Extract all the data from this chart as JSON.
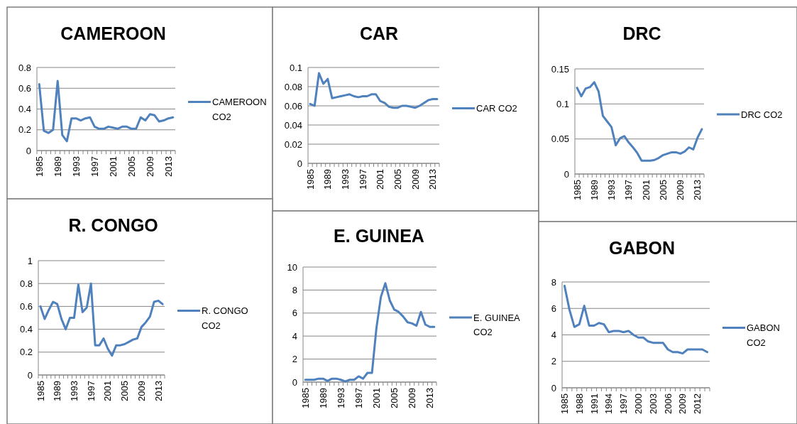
{
  "chart_data": [
    {
      "type": "line",
      "title": "CAMEROON",
      "categories": [
        "1985",
        null,
        null,
        null,
        "1989",
        null,
        null,
        null,
        "1993",
        null,
        null,
        null,
        "1997",
        null,
        null,
        null,
        "2001",
        null,
        null,
        null,
        "2005",
        null,
        null,
        null,
        "2009",
        null,
        null,
        null,
        "2013",
        null
      ],
      "series": [
        {
          "name": "CAMEROON CO2",
          "color": "#4f81bd",
          "values": [
            0.64,
            0.19,
            0.17,
            0.2,
            0.67,
            0.15,
            0.09,
            0.31,
            0.31,
            0.29,
            0.31,
            0.32,
            0.23,
            0.21,
            0.21,
            0.23,
            0.22,
            0.21,
            0.23,
            0.23,
            0.21,
            0.21,
            0.32,
            0.29,
            0.35,
            0.34,
            0.28,
            0.29,
            0.31,
            0.32
          ]
        }
      ],
      "ylim": [
        0,
        0.8
      ],
      "yticks": [
        0,
        0.2,
        0.4,
        0.6,
        0.8
      ],
      "grid": "y",
      "legend": "right"
    },
    {
      "type": "line",
      "title": "CAR",
      "categories": [
        "1985",
        null,
        null,
        null,
        "1989",
        null,
        null,
        null,
        "1993",
        null,
        null,
        null,
        "1997",
        null,
        null,
        null,
        "2001",
        null,
        null,
        null,
        "2005",
        null,
        null,
        null,
        "2009",
        null,
        null,
        null,
        "2013",
        null
      ],
      "series": [
        {
          "name": "CAR CO2",
          "color": "#4f81bd",
          "values": [
            0.062,
            0.06,
            0.094,
            0.083,
            0.088,
            0.068,
            0.069,
            0.07,
            0.071,
            0.072,
            0.07,
            0.069,
            0.07,
            0.07,
            0.072,
            0.072,
            0.065,
            0.063,
            0.059,
            0.058,
            0.058,
            0.06,
            0.06,
            0.059,
            0.058,
            0.06,
            0.063,
            0.066,
            0.067,
            0.067
          ]
        }
      ],
      "ylim": [
        0,
        0.1
      ],
      "yticks": [
        0,
        0.02,
        0.04,
        0.06,
        0.08,
        0.1
      ],
      "grid": "y",
      "legend": "right"
    },
    {
      "type": "line",
      "title": "DRC",
      "categories": [
        "1985",
        null,
        null,
        null,
        "1989",
        null,
        null,
        null,
        "1993",
        null,
        null,
        null,
        "1997",
        null,
        null,
        null,
        "2001",
        null,
        null,
        null,
        "2005",
        null,
        null,
        null,
        "2009",
        null,
        null,
        null,
        "2013",
        null
      ],
      "series": [
        {
          "name": "DRC CO2",
          "color": "#4f81bd",
          "values": [
            0.123,
            0.111,
            0.122,
            0.124,
            0.131,
            0.118,
            0.083,
            0.075,
            0.067,
            0.041,
            0.051,
            0.054,
            0.045,
            0.038,
            0.03,
            0.019,
            0.019,
            0.019,
            0.02,
            0.023,
            0.027,
            0.029,
            0.031,
            0.031,
            0.029,
            0.032,
            0.038,
            0.035,
            0.052,
            0.064
          ]
        }
      ],
      "ylim": [
        0,
        0.15
      ],
      "yticks": [
        0,
        0.05,
        0.1,
        0.15
      ],
      "grid": "y",
      "legend": "right"
    },
    {
      "type": "line",
      "title": "R. CONGO",
      "categories": [
        "1985",
        null,
        null,
        null,
        "1989",
        null,
        null,
        null,
        "1993",
        null,
        null,
        null,
        "1997",
        null,
        null,
        null,
        "2001",
        null,
        null,
        null,
        "2005",
        null,
        null,
        null,
        "2009",
        null,
        null,
        null,
        "2013",
        null
      ],
      "series": [
        {
          "name": "R. CONGO CO2",
          "color": "#4f81bd",
          "values": [
            0.6,
            0.49,
            0.57,
            0.64,
            0.62,
            0.49,
            0.4,
            0.5,
            0.5,
            0.79,
            0.55,
            0.59,
            0.8,
            0.26,
            0.26,
            0.32,
            0.23,
            0.17,
            0.26,
            0.26,
            0.27,
            0.29,
            0.31,
            0.32,
            0.42,
            0.46,
            0.51,
            0.64,
            0.65,
            0.62
          ]
        }
      ],
      "ylim": [
        0,
        1
      ],
      "yticks": [
        0,
        0.2,
        0.4,
        0.6,
        0.8,
        1
      ],
      "grid": "y",
      "legend": "right"
    },
    {
      "type": "line",
      "title": "E. GUINEA",
      "categories": [
        "1985",
        null,
        null,
        null,
        "1989",
        null,
        null,
        null,
        "1993",
        null,
        null,
        null,
        "1997",
        null,
        null,
        null,
        "2001",
        null,
        null,
        null,
        "2005",
        null,
        null,
        null,
        "2009",
        null,
        null,
        null,
        "2013",
        null
      ],
      "series": [
        {
          "name": "E. GUINEA CO2",
          "color": "#4f81bd",
          "values": [
            0.2,
            0.2,
            0.2,
            0.3,
            0.3,
            0.1,
            0.3,
            0.3,
            0.2,
            0.05,
            0.2,
            0.2,
            0.5,
            0.3,
            0.8,
            0.8,
            4.7,
            7.4,
            8.6,
            7.1,
            6.3,
            6.1,
            5.7,
            5.2,
            5.1,
            4.9,
            6.1,
            5.0,
            4.8,
            4.8
          ]
        }
      ],
      "ylim": [
        0,
        10
      ],
      "yticks": [
        0,
        2,
        4,
        6,
        8,
        10
      ],
      "grid": "y",
      "legend": "right"
    },
    {
      "type": "line",
      "title": "GABON",
      "categories": [
        "1985",
        null,
        null,
        "1988",
        null,
        null,
        "1991",
        null,
        null,
        "1994",
        null,
        null,
        "1997",
        null,
        null,
        "2000",
        null,
        null,
        "2003",
        null,
        null,
        "2006",
        null,
        null,
        "2009",
        null,
        null,
        "2012",
        null,
        null
      ],
      "series": [
        {
          "name": "GABON CO2",
          "color": "#4f81bd",
          "values": [
            7.7,
            5.9,
            4.6,
            4.8,
            6.2,
            4.7,
            4.7,
            4.9,
            4.8,
            4.2,
            4.3,
            4.3,
            4.2,
            4.3,
            4.0,
            3.8,
            3.8,
            3.5,
            3.4,
            3.4,
            3.4,
            2.9,
            2.7,
            2.7,
            2.6,
            2.9,
            2.9,
            2.9,
            2.9,
            2.7
          ]
        }
      ],
      "ylim": [
        0,
        8
      ],
      "yticks": [
        0,
        2,
        4,
        6,
        8
      ],
      "grid": "y",
      "legend": "right"
    }
  ]
}
